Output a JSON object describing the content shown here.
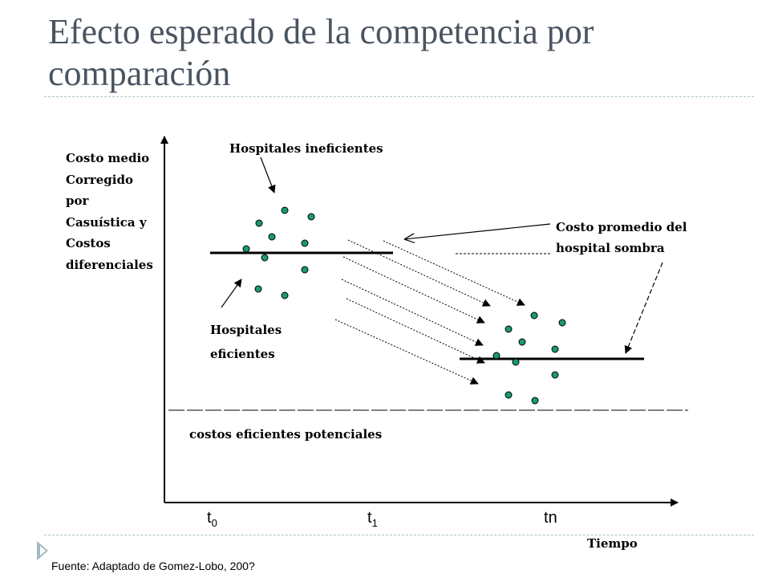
{
  "title": "Efecto esperado de la competencia por comparación",
  "y_axis_label": [
    "Costo medio",
    "Corregido",
    "por",
    "Casuística y",
    "Costos",
    "diferenciales"
  ],
  "x_axis_label": "Tiempo",
  "labels": {
    "inefficient": "Hospitales ineficientes",
    "shadow_hospital": [
      "Costo promedio del",
      "hospital sombra"
    ],
    "efficient": [
      "Hospitales",
      "eficientes"
    ],
    "potential_costs": "costos eficientes potenciales"
  },
  "ticks": [
    {
      "base": "t",
      "sub": "0"
    },
    {
      "base": "t",
      "sub": "1"
    },
    {
      "base": "t",
      "sub": "n"
    }
  ],
  "source": "Fuente: Adaptado de Gomez-Lobo, 200?",
  "colors": {
    "dot_fill": "#1a9a70",
    "title": "#4a5461",
    "rule": "#a9c3c6"
  }
}
